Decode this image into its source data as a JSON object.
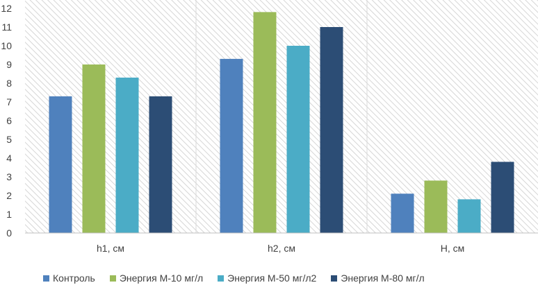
{
  "chart_data": {
    "type": "bar",
    "categories": [
      "h1, см",
      "h2, см",
      "H, см"
    ],
    "series": [
      {
        "name": "Контроль",
        "values": [
          7.3,
          9.3,
          2.1
        ],
        "color": "#4f81bd"
      },
      {
        "name": "Энергия М-10 мг/л",
        "values": [
          9.0,
          11.8,
          2.8
        ],
        "color": "#9bbb59"
      },
      {
        "name": "Энергия М-50 мг/л2",
        "values": [
          8.3,
          10.0,
          1.8
        ],
        "color": "#4bacc6"
      },
      {
        "name": "Энергия М-80 мг/л",
        "values": [
          7.3,
          11.0,
          3.8
        ],
        "color": "#2c4d75"
      }
    ],
    "yticks": [
      "0",
      "1",
      "2",
      "3",
      "4",
      "5",
      "6",
      "7",
      "8",
      "9",
      "10",
      "11",
      "12"
    ],
    "ylim": [
      0,
      12.5
    ],
    "title": "",
    "xlabel": "",
    "ylabel": "",
    "grid": false,
    "background": "diagonal-hatch",
    "legend_position": "bottom"
  }
}
